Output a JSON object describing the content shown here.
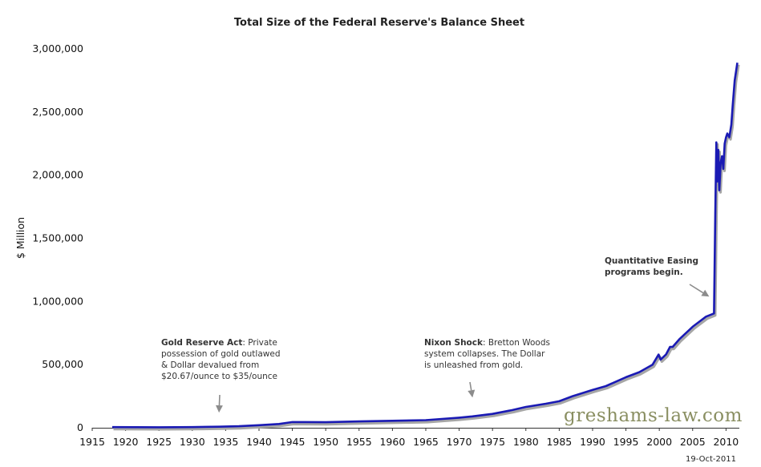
{
  "chart_data": {
    "type": "line",
    "title": "Total Size of the Federal Reserve's Balance Sheet",
    "ylabel": "$ Million",
    "xlabel": "",
    "xlim": [
      1915,
      2012
    ],
    "ylim": [
      0,
      3000000
    ],
    "x_ticks": [
      1915,
      1920,
      1925,
      1930,
      1935,
      1940,
      1945,
      1950,
      1955,
      1960,
      1965,
      1970,
      1975,
      1980,
      1985,
      1990,
      1995,
      2000,
      2005,
      2010
    ],
    "y_ticks": [
      0,
      500000,
      1000000,
      1500000,
      2000000,
      2500000,
      3000000
    ],
    "y_tick_labels": [
      "0",
      "500,000",
      "1,000,000",
      "1,500,000",
      "2,000,000",
      "2,500,000",
      "3,000,000"
    ],
    "grid": false,
    "series": [
      {
        "color": "#1a1ab4",
        "shadow_color": "#a6a6a6",
        "x": [
          1918,
          1925,
          1930,
          1934,
          1937,
          1940,
          1943,
          1945,
          1950,
          1955,
          1960,
          1965,
          1970,
          1972,
          1975,
          1978,
          1980,
          1983,
          1985,
          1987,
          1990,
          1992,
          1995,
          1997,
          1999,
          1999.9,
          2000.2,
          2001,
          2001.6,
          2002,
          2003,
          2005,
          2007,
          2008.2,
          2008.4,
          2008.55,
          2008.7,
          2008.85,
          2009,
          2009.2,
          2009.4,
          2009.6,
          2009.8,
          2010,
          2010.2,
          2010.5,
          2010.8,
          2011,
          2011.3,
          2011.7
        ],
        "y": [
          5000,
          4000,
          5000,
          8000,
          12000,
          20000,
          30000,
          45000,
          44000,
          50000,
          55000,
          60000,
          80000,
          90000,
          110000,
          140000,
          165000,
          190000,
          210000,
          250000,
          300000,
          330000,
          400000,
          440000,
          500000,
          580000,
          540000,
          580000,
          640000,
          640000,
          700000,
          800000,
          880000,
          905000,
          1700000,
          2260000,
          1950000,
          2200000,
          1880000,
          2100000,
          2150000,
          2050000,
          2250000,
          2300000,
          2330000,
          2300000,
          2400000,
          2550000,
          2750000,
          2890000
        ]
      }
    ],
    "annotations": [
      {
        "bold": "Gold Reserve Act",
        "rest": ": Private",
        "lines": [
          "possession of gold outlawed",
          "& Dollar devalued from",
          "$20.67/ounce to $35/ounce"
        ],
        "arrow_x": 1934,
        "arrow_y": 120000
      },
      {
        "bold": "Nixon Shock",
        "rest": ": Bretton Woods",
        "lines": [
          "system collapses. The Dollar",
          "is unleashed from gold."
        ],
        "arrow_x": 1972,
        "arrow_y": 240000
      },
      {
        "bold": "Quantitative Easing",
        "rest": "",
        "lines": [
          "programs begin."
        ],
        "bold_all": true,
        "arrow_x": 2008.2,
        "arrow_y": 1000000
      }
    ],
    "date_label": "19-Oct-2011",
    "watermark": "greshams-law.com"
  }
}
